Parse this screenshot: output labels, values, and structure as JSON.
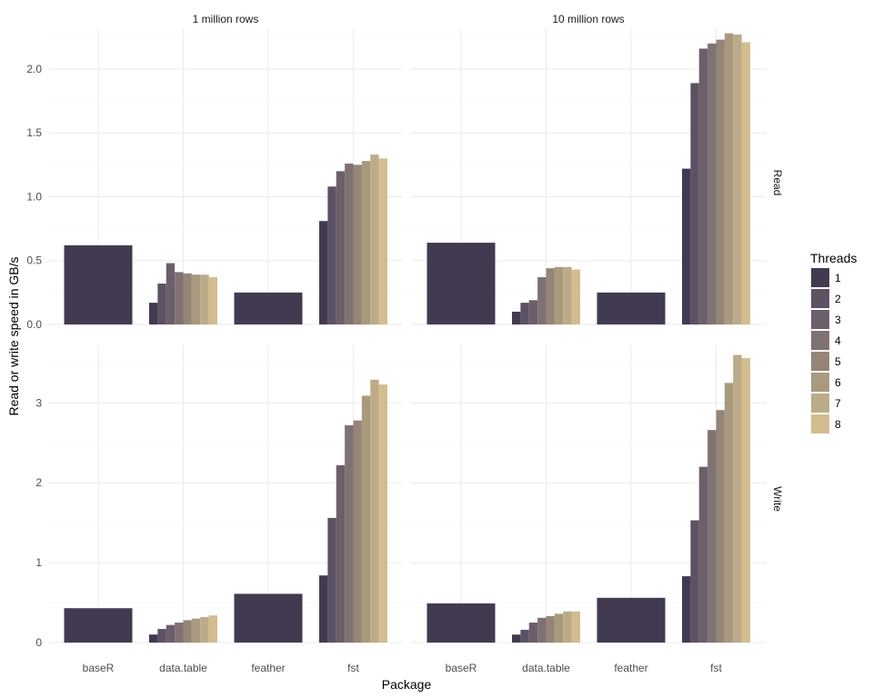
{
  "chart_data": {
    "type": "bar",
    "layout": "facet_grid",
    "xlabel": "Package",
    "ylabel": "Read or write speed in GB/s",
    "legend": {
      "title": "Threads",
      "position": "right"
    },
    "grid": true,
    "columns": [
      "1 million rows",
      "10 million rows"
    ],
    "rows": [
      {
        "label": "Read",
        "ylim": [
          0,
          2.32
        ],
        "yticks": [
          0.0,
          0.5,
          1.0,
          1.5,
          2.0
        ],
        "tick_labels": [
          "0.0",
          "0.5",
          "1.0",
          "1.5",
          "2.0"
        ]
      },
      {
        "label": "Write",
        "ylim": [
          0,
          3.72
        ],
        "yticks": [
          0,
          1,
          2,
          3
        ],
        "tick_labels": [
          "0",
          "1",
          "2",
          "3"
        ]
      }
    ],
    "categories": [
      "baseR",
      "data.table",
      "feather",
      "fst"
    ],
    "threads": [
      "1",
      "2",
      "3",
      "4",
      "5",
      "6",
      "7",
      "8"
    ],
    "colors": [
      "#423a51",
      "#5d5164",
      "#6c5f6b",
      "#7f7272",
      "#958577",
      "#a99a7e",
      "#bcab88",
      "#d3bd8f"
    ],
    "panels": [
      {
        "row": 0,
        "col": 0,
        "values": {
          "baseR": [
            0.62
          ],
          "data.table": [
            0.17,
            0.32,
            0.48,
            0.41,
            0.4,
            0.39,
            0.39,
            0.37
          ],
          "feather": [
            0.25
          ],
          "fst": [
            0.81,
            1.08,
            1.2,
            1.26,
            1.25,
            1.28,
            1.33,
            1.3
          ]
        }
      },
      {
        "row": 0,
        "col": 1,
        "values": {
          "baseR": [
            0.64
          ],
          "data.table": [
            0.1,
            0.17,
            0.19,
            0.37,
            0.44,
            0.45,
            0.45,
            0.43
          ],
          "feather": [
            0.25
          ],
          "fst": [
            1.22,
            1.89,
            2.16,
            2.2,
            2.23,
            2.28,
            2.27,
            2.21
          ]
        }
      },
      {
        "row": 1,
        "col": 0,
        "values": {
          "baseR": [
            0.43
          ],
          "data.table": [
            0.1,
            0.17,
            0.22,
            0.25,
            0.28,
            0.3,
            0.32,
            0.34
          ],
          "feather": [
            0.61
          ],
          "fst": [
            0.84,
            1.56,
            2.22,
            2.72,
            2.78,
            3.09,
            3.29,
            3.23
          ]
        }
      },
      {
        "row": 1,
        "col": 1,
        "values": {
          "baseR": [
            0.49
          ],
          "data.table": [
            0.1,
            0.16,
            0.25,
            0.31,
            0.33,
            0.36,
            0.39,
            0.39
          ],
          "feather": [
            0.56
          ],
          "fst": [
            0.83,
            1.53,
            2.2,
            2.66,
            2.91,
            3.25,
            3.6,
            3.56
          ]
        }
      }
    ]
  }
}
